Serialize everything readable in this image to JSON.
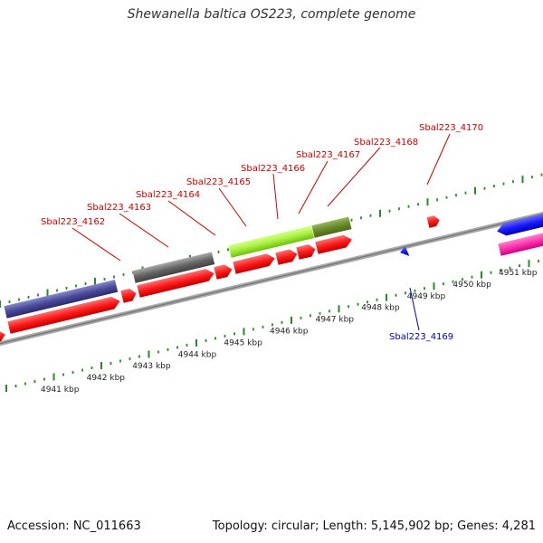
{
  "title": "Shewanella baltica OS223, complete genome",
  "footer": {
    "accession": "Accession: NC_011663",
    "topology": "Topology: circular; Length: 5,145,902 bp; Genes: 4,281"
  },
  "colors": {
    "backbone": "#888888",
    "red_gene": "#ff1a1a",
    "blue_gene": "#1a1aff",
    "tick": "#2a8a2a",
    "label_red": "#cc0000",
    "label_blue": "#0000bb"
  },
  "scale_labels": [
    "4941 kbp",
    "4942 kbp",
    "4943 kbp",
    "4944 kbp",
    "4945 kbp",
    "4946 kbp",
    "4947 kbp",
    "4948 kbp",
    "4949 kbp",
    "4950 kbp",
    "4951 kbp"
  ],
  "gene_labels": [
    {
      "text": "Sbal223_4162",
      "strand": "plus"
    },
    {
      "text": "Sbal223_4163",
      "strand": "plus"
    },
    {
      "text": "Sbal223_4164",
      "strand": "plus"
    },
    {
      "text": "Sbal223_4165",
      "strand": "plus"
    },
    {
      "text": "Sbal223_4166",
      "strand": "plus"
    },
    {
      "text": "Sbal223_4167",
      "strand": "plus"
    },
    {
      "text": "Sbal223_4168",
      "strand": "plus"
    },
    {
      "text": "Sbal223_4170",
      "strand": "plus"
    },
    {
      "text": "Sbal223_4169",
      "strand": "minus"
    }
  ]
}
